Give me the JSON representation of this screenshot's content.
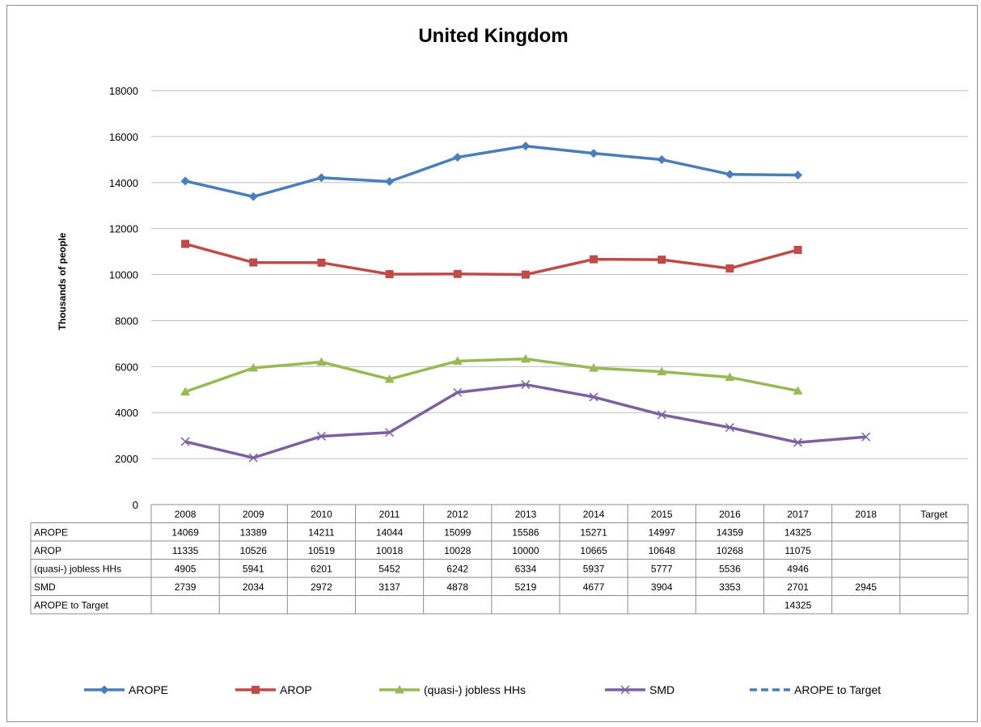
{
  "chart_data": {
    "type": "line",
    "title": "United Kingdom",
    "ylabel": "Thousands  of people",
    "xlabel": "",
    "ylim": [
      0,
      18000
    ],
    "yticks": [
      0,
      2000,
      4000,
      6000,
      8000,
      10000,
      12000,
      14000,
      16000,
      18000
    ],
    "categories": [
      "2008",
      "2009",
      "2010",
      "2011",
      "2012",
      "2013",
      "2014",
      "2015",
      "2016",
      "2017",
      "2018",
      "Target"
    ],
    "grid": true,
    "legend_position": "bottom",
    "series": [
      {
        "name": "AROPE",
        "color": "#4a7ebb",
        "marker": "diamond",
        "dashed": false,
        "values": [
          14069,
          13389,
          14211,
          14044,
          15099,
          15586,
          15271,
          14997,
          14359,
          14325,
          null,
          null
        ]
      },
      {
        "name": "AROP",
        "color": "#be4b48",
        "marker": "square",
        "dashed": false,
        "values": [
          11335,
          10526,
          10519,
          10018,
          10028,
          10000,
          10665,
          10648,
          10268,
          11075,
          null,
          null
        ]
      },
      {
        "name": "(quasi-) jobless HHs",
        "color": "#98b954",
        "marker": "triangle",
        "dashed": false,
        "values": [
          4905,
          5941,
          6201,
          5452,
          6242,
          6334,
          5937,
          5777,
          5536,
          4946,
          null,
          null
        ]
      },
      {
        "name": "SMD",
        "color": "#7d60a0",
        "marker": "x",
        "dashed": false,
        "values": [
          2739,
          2034,
          2972,
          3137,
          4878,
          5219,
          4677,
          3904,
          3353,
          2701,
          2945,
          null
        ]
      },
      {
        "name": "AROPE to Target",
        "color": "#4a7ebb",
        "marker": "none",
        "dashed": true,
        "values": [
          null,
          null,
          null,
          null,
          null,
          null,
          null,
          null,
          null,
          14325,
          null,
          null
        ]
      }
    ]
  }
}
